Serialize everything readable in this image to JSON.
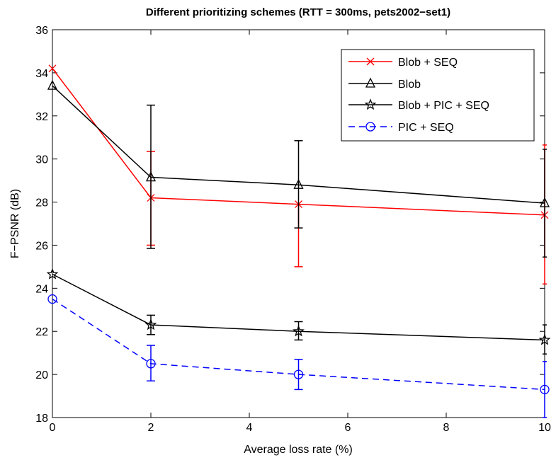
{
  "chart_data": {
    "type": "line",
    "title": "Different prioritizing schemes (RTT = 300ms, pets2002−set1)",
    "xlabel": "Average loss rate (%)",
    "ylabel": "F−PSNR (dB)",
    "xlim": [
      0,
      10
    ],
    "ylim": [
      18,
      36
    ],
    "xticks": [
      0,
      2,
      4,
      6,
      8,
      10
    ],
    "yticks": [
      18,
      20,
      22,
      24,
      26,
      28,
      30,
      32,
      34,
      36
    ],
    "grid": false,
    "legend_position": "top-right",
    "x": [
      0,
      2,
      5,
      10
    ],
    "series": [
      {
        "name": "Blob + SEQ",
        "color": "#ff0000",
        "marker": "x",
        "linestyle": "solid",
        "values": [
          34.2,
          28.2,
          27.9,
          27.4
        ],
        "error_low": [
          null,
          26.0,
          25.0,
          24.2
        ],
        "error_high": [
          null,
          30.35,
          null,
          30.65
        ]
      },
      {
        "name": "Blob",
        "color": "#000000",
        "marker": "triangle",
        "linestyle": "solid",
        "values": [
          33.4,
          29.15,
          28.8,
          27.95
        ],
        "error_low": [
          null,
          25.85,
          26.8,
          25.45
        ],
        "error_high": [
          null,
          32.5,
          30.85,
          30.45
        ]
      },
      {
        "name": "Blob + PIC + SEQ",
        "color": "#000000",
        "marker": "star",
        "linestyle": "solid",
        "values": [
          24.65,
          22.3,
          22.0,
          21.6
        ],
        "error_low": [
          null,
          21.85,
          21.6,
          20.95
        ],
        "error_high": [
          null,
          22.75,
          22.45,
          22.3
        ]
      },
      {
        "name": "PIC  + SEQ",
        "color": "#0000ff",
        "marker": "circle",
        "linestyle": "dashed",
        "values": [
          23.5,
          20.5,
          20.0,
          19.3
        ],
        "error_low": [
          null,
          19.7,
          19.3,
          18.0
        ],
        "error_high": [
          null,
          21.35,
          20.7,
          20.6
        ]
      }
    ]
  }
}
